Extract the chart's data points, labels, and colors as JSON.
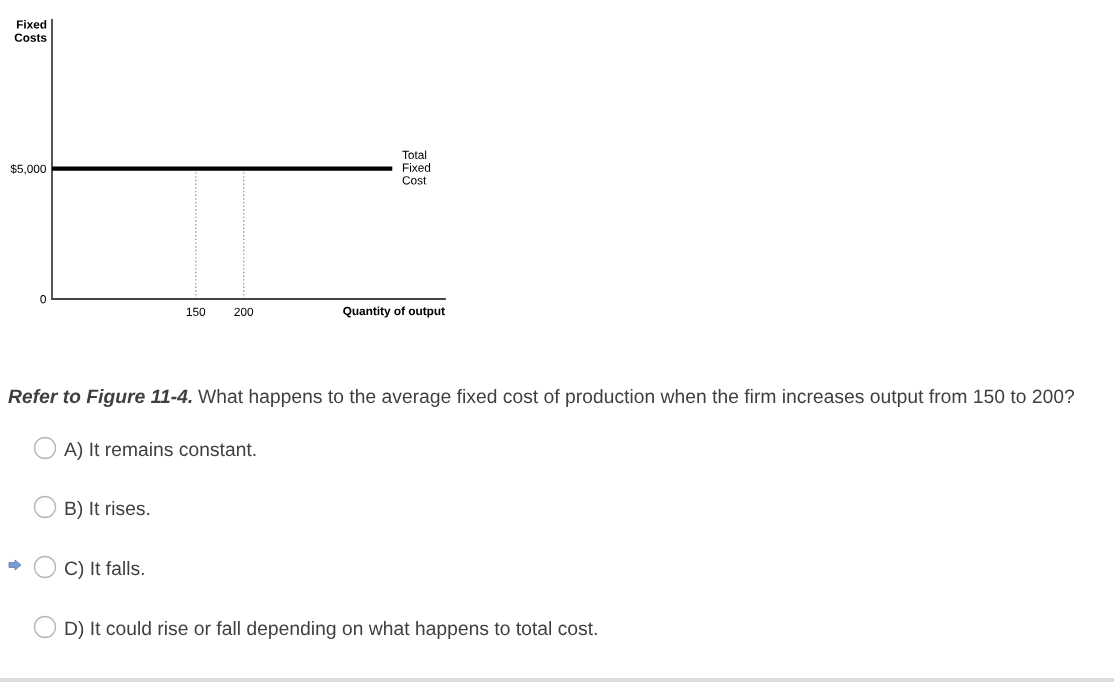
{
  "chart_data": {
    "type": "line",
    "ylabel": "Fixed\nCosts",
    "xlabel": "Quantity of output",
    "series": [
      {
        "name": "Total\nFixed\nCost",
        "color": "#000000",
        "x": [
          0,
          355
        ],
        "values": [
          5000,
          5000
        ]
      }
    ],
    "xlim": [
      0,
      410
    ],
    "xticks": [
      150,
      200
    ],
    "ylim": [
      0,
      10700
    ],
    "yticks": [
      {
        "value": 0,
        "label": "0"
      },
      {
        "value": 5000,
        "label": "$5,000"
      }
    ],
    "ref_lines": [
      {
        "axis": "x",
        "value": 150,
        "color": "#999999",
        "line_style": "dotted"
      },
      {
        "axis": "x",
        "value": 200,
        "color": "#999999",
        "line_style": "dotted"
      }
    ],
    "grid": false,
    "legend": false,
    "marker": "none",
    "line_style": "solid",
    "annotations": [
      "Refer to Figure 11-4.",
      "What happens to the average fixed cost of production when the firm increases output from 150 to 200?",
      "A) It remains constant.",
      "B) It rises.",
      "C) It falls.",
      "D) It could rise or fall depending on what happens to total cost."
    ]
  }
}
